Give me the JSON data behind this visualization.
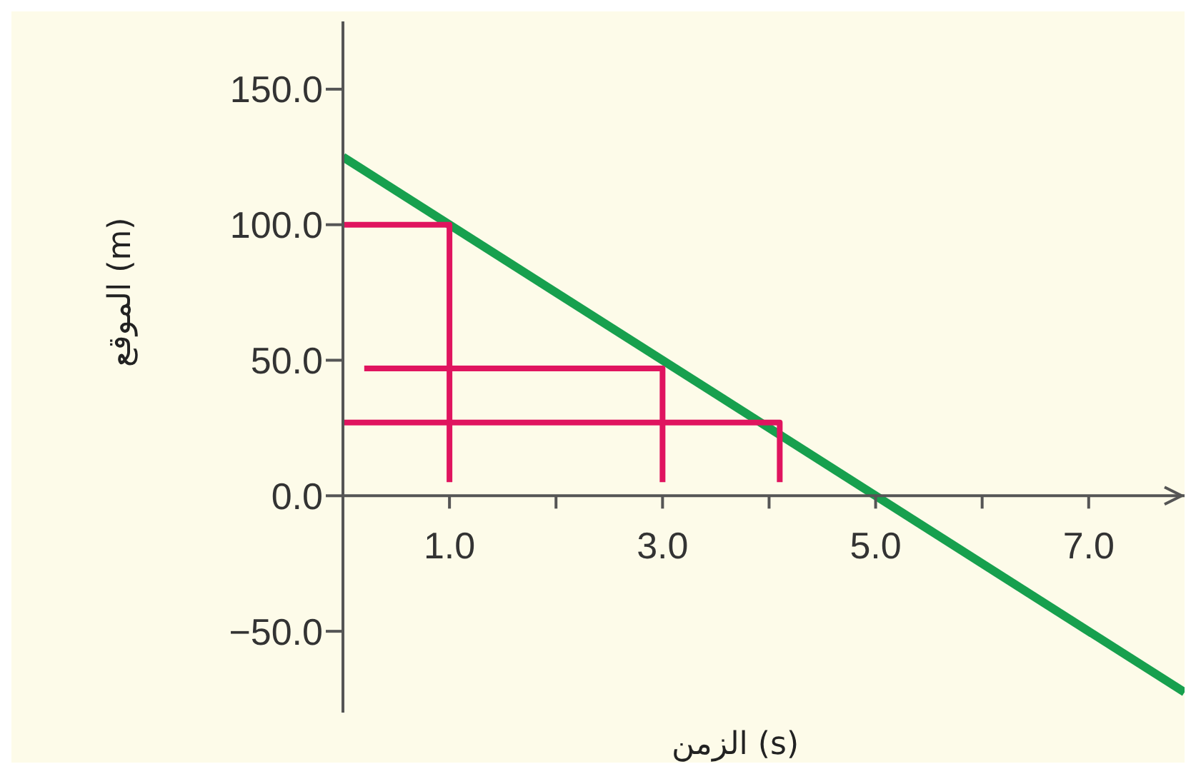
{
  "chart_data": {
    "type": "line",
    "xlabel": "الزمن (s)",
    "ylabel": "الموقع (m)",
    "xlim": [
      0,
      7.9
    ],
    "ylim": [
      -80,
      175
    ],
    "xticks": [
      {
        "value": 1,
        "label": "1.0"
      },
      {
        "value": 2,
        "label": null
      },
      {
        "value": 3,
        "label": "3.0"
      },
      {
        "value": 4,
        "label": null
      },
      {
        "value": 5,
        "label": "5.0"
      },
      {
        "value": 6,
        "label": null
      },
      {
        "value": 7,
        "label": "7.0"
      }
    ],
    "yticks": [
      {
        "value": -50,
        "label": "−50.0"
      },
      {
        "value": 0,
        "label": "0.0"
      },
      {
        "value": 50,
        "label": "50.0"
      },
      {
        "value": 100,
        "label": "100.0"
      },
      {
        "value": 150,
        "label": "150.0"
      }
    ],
    "marker": "none",
    "line_style": "solid",
    "series": [
      {
        "color": "#17a04e",
        "x": [
          0,
          7.9
        ],
        "values": [
          125,
          -72.5
        ]
      },
      {
        "color": "#e0145f",
        "x": [
          0,
          1,
          1
        ],
        "values": [
          100,
          100,
          5
        ]
      },
      {
        "color": "#e0145f",
        "x": [
          0.2,
          3,
          3
        ],
        "values": [
          47,
          47,
          5
        ]
      },
      {
        "color": "#e0145f",
        "x": [
          0,
          4.1,
          4.1
        ],
        "values": [
          27,
          27,
          5
        ]
      }
    ]
  }
}
